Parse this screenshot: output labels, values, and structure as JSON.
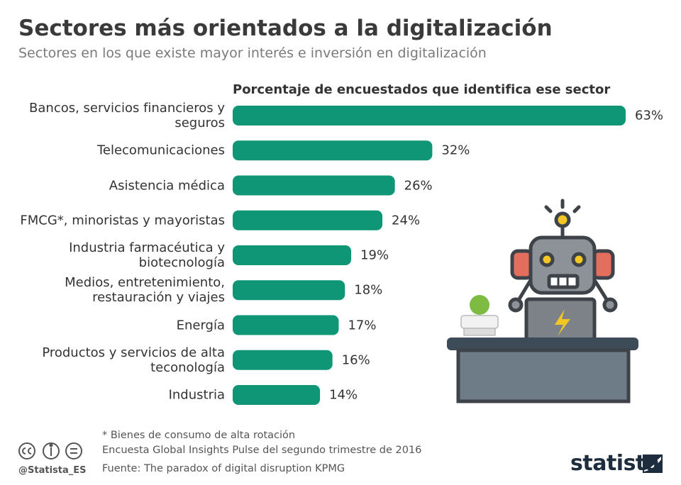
{
  "chart_data": {
    "type": "bar",
    "title": "Sectores más orientados a la digitalización",
    "subtitle": "Sectores en los que existe mayor interés e inversión en digitalización",
    "x_label": "Porcentaje de encuestados que identifica ese sector",
    "categories": [
      "Bancos, servicios financieros y seguros",
      "Telecomunicaciones",
      "Asistencia médica",
      "FMCG*, minoristas y mayoristas",
      "Industria farmacéutica y biotecnología",
      "Medios, entretenimiento, restauración y viajes",
      "Energía",
      "Productos y servicios de alta teconología",
      "Industria"
    ],
    "values": [
      63,
      32,
      26,
      24,
      19,
      18,
      17,
      16,
      14
    ],
    "value_labels": [
      "63%",
      "32%",
      "26%",
      "24%",
      "19%",
      "18%",
      "17%",
      "16%",
      "14%"
    ],
    "color": "#0f9676",
    "footnote": "* Bienes de consumo de alta rotación",
    "note": "Encuesta Global Insights Pulse del segundo trimestre de 2016",
    "source": "Fuente: The paradox of digital disruption KPMG",
    "handle": "@Statista_ES",
    "brand": "statista"
  }
}
